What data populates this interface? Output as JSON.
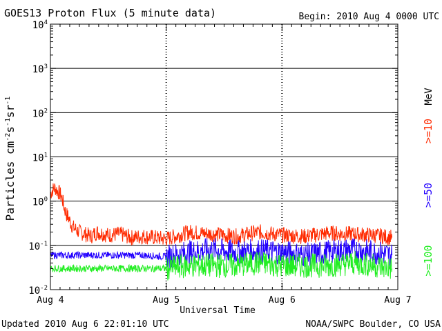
{
  "header": {
    "title": "GOES13 Proton Flux (5 minute data)",
    "begin": "Begin: 2010 Aug 4 0000 UTC"
  },
  "footer": {
    "updated": "Updated 2010 Aug  6 22:01:10 UTC",
    "credit": "NOAA/SWPC Boulder, CO USA"
  },
  "colors": {
    "gt10": "#ff2a00",
    "gt50": "#2200ff",
    "gt100": "#22ee22"
  },
  "chart_data": {
    "type": "line",
    "title": "GOES13 Proton Flux (5 minute data)",
    "xlabel": "Universal Time",
    "ylabel_parts": {
      "base": "Particles cm",
      "exp1": "-2",
      "mid1": "s",
      "exp2": "-1",
      "mid2": "sr",
      "exp3": "-1"
    },
    "y_scale": "log",
    "ylim": [
      0.01,
      10000
    ],
    "y_ticks": [
      {
        "base": "10",
        "exp": "-2"
      },
      {
        "base": "10",
        "exp": "-1"
      },
      {
        "base": "10",
        "exp": "0"
      },
      {
        "base": "10",
        "exp": "1"
      },
      {
        "base": "10",
        "exp": "2"
      },
      {
        "base": "10",
        "exp": "3"
      },
      {
        "base": "10",
        "exp": "4"
      }
    ],
    "x_ticks": [
      "Aug 4",
      "Aug 5",
      "Aug 6",
      "Aug 7"
    ],
    "x_range_days": [
      0,
      3
    ],
    "unit_label": "MeV",
    "series": [
      {
        "name": ">=10",
        "x": [
          0,
          0.02,
          0.04,
          0.06,
          0.08,
          0.1,
          0.12,
          0.14,
          0.16,
          0.18,
          0.2,
          0.25,
          0.3,
          0.35,
          0.4,
          0.5,
          0.6,
          0.7,
          0.8,
          0.9,
          1.0,
          1.2,
          1.4,
          1.6,
          1.8,
          2.0,
          2.2,
          2.4,
          2.6,
          2.8,
          2.95
        ],
        "y": [
          1.5,
          1.8,
          2.0,
          1.7,
          1.5,
          1.2,
          0.7,
          0.5,
          0.4,
          0.3,
          0.25,
          0.2,
          0.18,
          0.16,
          0.2,
          0.17,
          0.18,
          0.15,
          0.16,
          0.15,
          0.14,
          0.2,
          0.18,
          0.16,
          0.2,
          0.17,
          0.16,
          0.19,
          0.18,
          0.17,
          0.15
        ]
      },
      {
        "name": ">=50",
        "x": [
          0,
          0.2,
          0.4,
          0.6,
          0.8,
          1.0,
          1.2,
          1.4,
          1.6,
          1.8,
          2.0,
          2.2,
          2.4,
          2.6,
          2.8,
          2.95
        ],
        "y": [
          0.06,
          0.06,
          0.06,
          0.06,
          0.06,
          0.055,
          0.07,
          0.08,
          0.07,
          0.075,
          0.07,
          0.06,
          0.07,
          0.08,
          0.07,
          0.06
        ]
      },
      {
        "name": ">=100",
        "x": [
          0,
          0.2,
          0.4,
          0.6,
          0.8,
          1.0,
          1.2,
          1.4,
          1.6,
          1.8,
          2.0,
          2.2,
          2.4,
          2.6,
          2.8,
          2.95
        ],
        "y": [
          0.03,
          0.03,
          0.03,
          0.03,
          0.03,
          0.03,
          0.035,
          0.035,
          0.035,
          0.04,
          0.035,
          0.035,
          0.035,
          0.04,
          0.035,
          0.03
        ]
      }
    ]
  }
}
